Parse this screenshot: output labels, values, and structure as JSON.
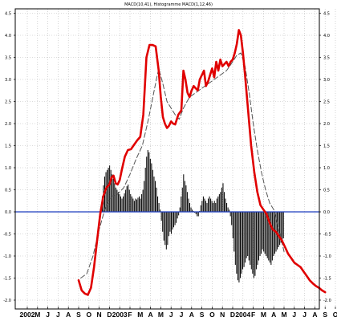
{
  "chart_data": {
    "type": "line",
    "title": "MACD(10,41), Histogramme MACD(1,12,46)",
    "x_tick_labels": [
      "2002",
      "M",
      "J",
      "J",
      "A",
      "S",
      "O",
      "N",
      "D",
      "2003",
      "F",
      "M",
      "A",
      "M",
      "J",
      "J",
      "A",
      "S",
      "O",
      "N",
      "D",
      "2004",
      "F",
      "M",
      "A",
      "M",
      "J",
      "J",
      "A",
      "S",
      "O"
    ],
    "y_ticks": [
      -2.0,
      -1.5,
      -1.0,
      -0.5,
      0.0,
      0.5,
      1.0,
      1.5,
      2.0,
      2.5,
      3.0,
      3.5,
      4.0,
      4.5
    ],
    "y_tick_labels": [
      "-2.0",
      "-1.5",
      "-1.0",
      "-0.5",
      "0.0",
      "0.5",
      "1.0",
      "1.5",
      "2.0",
      "2.5",
      "3.0",
      "3.5",
      "4.0",
      "4.5"
    ],
    "ylim": [
      -2.2,
      4.6
    ],
    "zero_line_color": "#1f3fbf",
    "grid": true,
    "series": [
      {
        "role": "macd",
        "color": "#e00000",
        "style": "solid",
        "x": [
          5.0,
          5.3,
          5.6,
          5.9,
          6.2,
          6.5,
          6.8,
          7.1,
          7.4,
          7.7,
          8.0,
          8.2,
          8.4,
          8.6,
          8.8,
          9.0,
          9.2,
          9.5,
          9.8,
          10.1,
          10.4,
          10.7,
          11.0,
          11.3,
          11.6,
          11.9,
          12.2,
          12.5,
          12.8,
          13.0,
          13.2,
          13.4,
          13.6,
          13.8,
          14.0,
          14.2,
          14.4,
          14.7,
          15.0,
          15.2,
          15.4,
          15.6,
          15.8,
          16.0,
          16.2,
          16.4,
          16.6,
          16.8,
          17.0,
          17.2,
          17.4,
          17.6,
          17.8,
          18.0,
          18.2,
          18.4,
          18.6,
          18.8,
          19.0,
          19.2,
          19.4,
          19.6,
          19.8,
          20.0,
          20.2,
          20.4,
          20.6,
          20.8,
          21.0,
          21.2,
          21.5,
          21.8,
          22.1,
          22.4,
          22.7,
          23.0,
          23.3,
          23.6,
          23.9,
          24.2,
          24.5,
          24.8,
          25.1,
          25.4,
          25.7,
          26.0,
          26.3,
          26.6,
          26.9,
          27.2,
          27.5,
          27.8,
          28.1,
          28.4,
          28.7,
          29.0
        ],
        "values": [
          -1.55,
          -1.78,
          -1.85,
          -1.88,
          -1.72,
          -1.25,
          -0.65,
          -0.05,
          0.35,
          0.55,
          0.62,
          0.78,
          0.82,
          0.65,
          0.62,
          0.72,
          0.95,
          1.25,
          1.4,
          1.42,
          1.52,
          1.62,
          1.7,
          2.2,
          3.5,
          3.78,
          3.78,
          3.75,
          3.2,
          2.6,
          2.15,
          2.0,
          1.9,
          1.95,
          2.05,
          2.0,
          1.98,
          2.2,
          2.3,
          3.2,
          3.0,
          2.7,
          2.6,
          2.75,
          2.85,
          2.8,
          2.75,
          3.0,
          3.1,
          3.2,
          2.85,
          2.95,
          3.1,
          3.25,
          3.05,
          3.4,
          3.2,
          3.45,
          3.3,
          3.35,
          3.4,
          3.3,
          3.4,
          3.45,
          3.6,
          3.8,
          4.12,
          4.0,
          3.6,
          3.1,
          2.3,
          1.5,
          0.9,
          0.45,
          0.15,
          0.05,
          -0.05,
          -0.25,
          -0.4,
          -0.45,
          -0.55,
          -0.65,
          -0.8,
          -0.95,
          -1.05,
          -1.15,
          -1.2,
          -1.25,
          -1.35,
          -1.45,
          -1.55,
          -1.62,
          -1.68,
          -1.72,
          -1.78,
          -1.82
        ]
      },
      {
        "role": "signal",
        "color": "#555555",
        "style": "dashed",
        "x": [
          5.2,
          5.8,
          6.4,
          7.0,
          7.6,
          8.2,
          8.8,
          9.4,
          10.0,
          10.6,
          11.2,
          11.8,
          12.4,
          12.8,
          13.2,
          13.6,
          14.0,
          14.4,
          14.8,
          15.2,
          15.8,
          16.4,
          17.0,
          17.6,
          18.2,
          18.8,
          19.4,
          20.0,
          20.4,
          20.8,
          21.2,
          21.6,
          22.0,
          22.4,
          22.8,
          23.2,
          23.6,
          24.0,
          24.5,
          25.0
        ],
        "values": [
          -1.5,
          -1.4,
          -1.0,
          -0.4,
          0.1,
          0.35,
          0.4,
          0.55,
          0.85,
          1.2,
          1.5,
          2.1,
          2.8,
          3.25,
          2.9,
          2.5,
          2.35,
          2.2,
          2.1,
          2.35,
          2.6,
          2.7,
          2.8,
          2.9,
          3.0,
          3.1,
          3.2,
          3.4,
          3.55,
          3.6,
          3.3,
          2.7,
          2.0,
          1.4,
          0.9,
          0.5,
          0.2,
          0.05,
          -0.4,
          -0.9
        ]
      }
    ],
    "histogram": {
      "color": "#000000",
      "x": [
        7.3,
        7.42,
        7.54,
        7.66,
        7.78,
        7.9,
        8.02,
        8.14,
        8.26,
        8.38,
        8.5,
        8.62,
        8.74,
        8.86,
        8.98,
        9.1,
        9.22,
        9.34,
        9.46,
        9.58,
        9.7,
        9.82,
        9.94,
        10.06,
        10.18,
        10.3,
        10.42,
        10.54,
        10.66,
        10.78,
        10.9,
        11.02,
        11.14,
        11.26,
        11.38,
        11.5,
        11.62,
        11.74,
        11.86,
        11.98,
        12.1,
        12.22,
        12.34,
        12.46,
        12.58,
        12.7,
        12.82,
        12.94,
        13.06,
        13.18,
        13.3,
        13.42,
        13.54,
        13.66,
        13.78,
        13.9,
        14.02,
        14.14,
        14.26,
        14.38,
        14.5,
        14.62,
        14.74,
        14.86,
        14.98,
        15.1,
        15.22,
        15.34,
        15.46,
        15.58,
        15.7,
        15.82,
        15.94,
        16.06,
        16.18,
        16.3,
        16.42,
        16.54,
        16.66,
        16.78,
        16.9,
        17.02,
        17.14,
        17.26,
        17.38,
        17.5,
        17.62,
        17.74,
        17.86,
        17.98,
        18.1,
        18.22,
        18.34,
        18.46,
        18.58,
        18.7,
        18.82,
        18.94,
        19.06,
        19.18,
        19.3,
        19.42,
        19.54,
        19.66,
        19.78,
        19.9,
        20.02,
        20.14,
        20.26,
        20.38,
        20.5,
        20.62,
        20.74,
        20.86,
        20.98,
        21.1,
        21.22,
        21.34,
        21.46,
        21.58,
        21.7,
        21.82,
        21.94,
        22.06,
        22.18,
        22.3,
        22.42,
        22.54,
        22.66,
        22.78,
        22.9,
        23.02,
        23.14,
        23.26,
        23.38,
        23.5,
        23.62,
        23.74,
        23.86,
        23.98,
        24.1,
        24.22,
        24.34,
        24.46,
        24.58,
        24.7,
        24.82,
        24.94
      ],
      "values": [
        0.35,
        0.6,
        0.8,
        0.9,
        0.95,
        1.0,
        1.05,
        0.95,
        0.85,
        0.75,
        0.65,
        0.55,
        0.5,
        0.45,
        0.4,
        0.35,
        0.3,
        0.35,
        0.42,
        0.5,
        0.58,
        0.62,
        0.5,
        0.4,
        0.35,
        0.3,
        0.25,
        0.3,
        0.28,
        0.32,
        0.35,
        0.3,
        0.4,
        0.5,
        0.7,
        1.0,
        1.25,
        1.4,
        1.35,
        1.2,
        1.1,
        0.95,
        0.8,
        0.7,
        0.55,
        0.35,
        0.2,
        0.05,
        -0.2,
        -0.45,
        -0.65,
        -0.75,
        -0.85,
        -0.75,
        -0.55,
        -0.45,
        -0.5,
        -0.4,
        -0.35,
        -0.3,
        -0.25,
        -0.15,
        -0.08,
        0.1,
        0.35,
        0.55,
        0.85,
        0.7,
        0.6,
        0.45,
        0.3,
        0.2,
        0.1,
        0.05,
        0.02,
        -0.02,
        -0.05,
        -0.1,
        -0.1,
        0.02,
        0.15,
        0.25,
        0.35,
        0.3,
        0.25,
        0.2,
        0.3,
        0.35,
        0.3,
        0.25,
        0.2,
        0.25,
        0.2,
        0.3,
        0.35,
        0.4,
        0.45,
        0.55,
        0.65,
        0.45,
        0.3,
        0.2,
        0.1,
        0.05,
        -0.1,
        -0.3,
        -0.6,
        -0.9,
        -1.2,
        -1.4,
        -1.55,
        -1.6,
        -1.5,
        -1.4,
        -1.3,
        -1.25,
        -1.15,
        -1.05,
        -1.0,
        -1.1,
        -1.2,
        -1.3,
        -1.4,
        -1.5,
        -1.45,
        -1.3,
        -1.2,
        -1.1,
        -1.0,
        -0.95,
        -0.85,
        -0.9,
        -0.95,
        -1.0,
        -1.05,
        -1.1,
        -1.15,
        -1.2,
        -1.1,
        -1.0,
        -0.95,
        -0.9,
        -0.85,
        -0.8,
        -0.75,
        -0.7,
        -0.65,
        -0.6
      ]
    }
  }
}
